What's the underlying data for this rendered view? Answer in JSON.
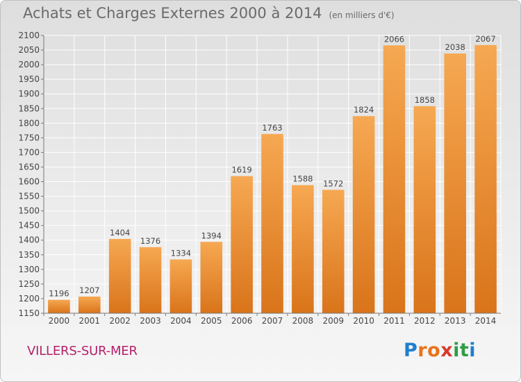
{
  "title": "Achats et Charges Externes 2000 à 2014",
  "subtitle": "(en milliers d'€)",
  "commune": "VILLERS-SUR-MER",
  "brand": {
    "letters": [
      "P",
      "r",
      "o",
      "x",
      "i",
      "t",
      "i"
    ],
    "colors": [
      "#1f7fcf",
      "#e8731a",
      "#e8731a",
      "#d93a2b",
      "#2f9d46",
      "#2f9d46",
      "#1f7fcf"
    ]
  },
  "chart_data": {
    "type": "bar",
    "categories": [
      "2000",
      "2001",
      "2002",
      "2003",
      "2004",
      "2005",
      "2006",
      "2007",
      "2008",
      "2009",
      "2010",
      "2011",
      "2012",
      "2013",
      "2014"
    ],
    "values": [
      1196,
      1207,
      1404,
      1376,
      1334,
      1394,
      1619,
      1763,
      1588,
      1572,
      1824,
      2066,
      1858,
      2038,
      2067
    ],
    "ylim": [
      1150,
      2100
    ],
    "yticks": [
      1150,
      1200,
      1250,
      1300,
      1350,
      1400,
      1450,
      1500,
      1550,
      1600,
      1650,
      1700,
      1750,
      1800,
      1850,
      1900,
      1950,
      2000,
      2050,
      2100
    ],
    "grid": true,
    "bar_color": "#f0922f",
    "bar_color_light": "#f6a852",
    "bar_color_dark": "#d9741a"
  }
}
